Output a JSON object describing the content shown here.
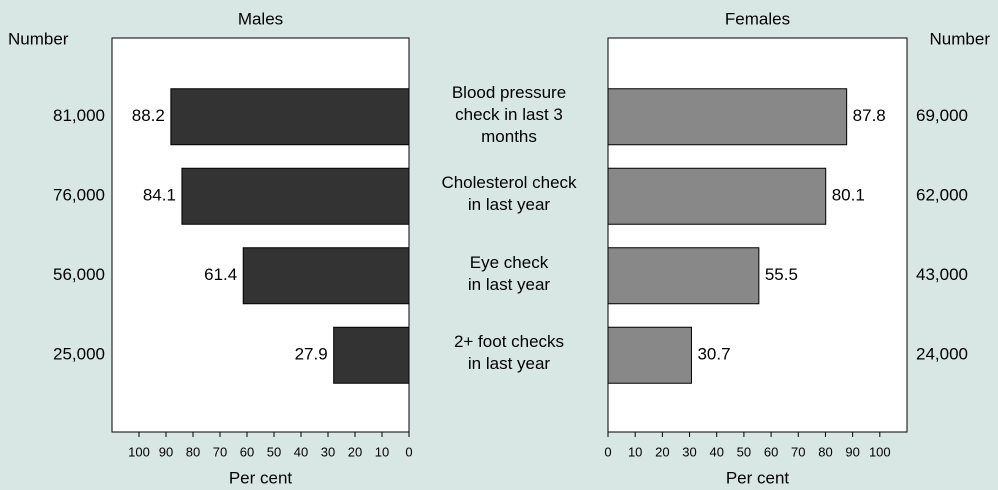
{
  "chart_data": {
    "type": "butterfly",
    "categories": [
      "Blood pressure\ncheck in last 3\nmonths",
      "Cholesterol check\nin last year",
      "Eye check\nin last year",
      "2+ foot checks\nin last year"
    ],
    "series": [
      {
        "name": "Males",
        "color": "#333333",
        "values": [
          88.2,
          84.1,
          61.4,
          27.9
        ],
        "counts": [
          {
            "value": 81000,
            "label": "81,000"
          },
          {
            "value": 76000,
            "label": "76,000"
          },
          {
            "value": 56000,
            "label": "56,000"
          },
          {
            "value": 25000,
            "label": "25,000"
          }
        ]
      },
      {
        "name": "Females",
        "color": "#888888",
        "values": [
          87.8,
          80.1,
          55.5,
          30.7
        ],
        "counts": [
          {
            "value": 69000,
            "label": "69,000"
          },
          {
            "value": 62000,
            "label": "62,000"
          },
          {
            "value": 43000,
            "label": "43,000"
          },
          {
            "value": 24000,
            "label": "24,000"
          }
        ]
      }
    ],
    "count_label": "Number",
    "x_label": "Per cent",
    "xlim": [
      0,
      110
    ],
    "xticks": [
      0,
      10,
      20,
      30,
      40,
      50,
      60,
      70,
      80,
      90,
      100
    ]
  }
}
